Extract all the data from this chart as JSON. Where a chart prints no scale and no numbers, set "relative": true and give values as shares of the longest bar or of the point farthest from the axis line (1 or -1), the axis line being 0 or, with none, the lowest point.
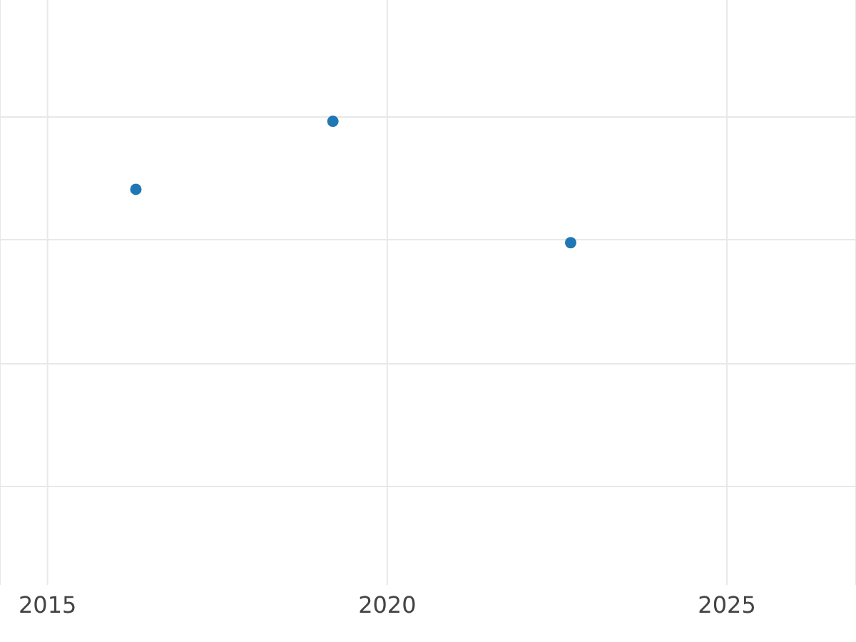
{
  "chart_data": {
    "type": "scatter",
    "relative": true,
    "x": [
      2016.3,
      2019.2,
      2022.7
    ],
    "values": [
      0.44,
      1,
      0
    ],
    "color": "#1f77b4",
    "marker": "circle",
    "xlim": [
      2014.3,
      2026.9
    ],
    "xticks": [
      2015,
      2020,
      2025
    ],
    "grid": true,
    "legend": false
  }
}
